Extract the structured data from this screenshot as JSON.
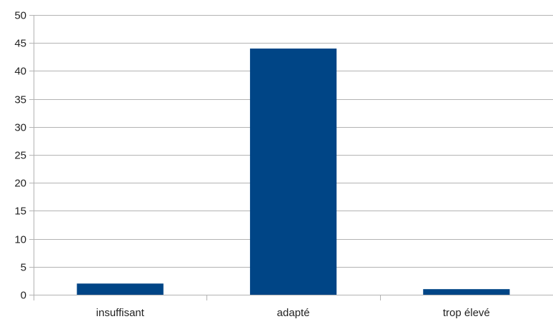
{
  "chart_data": {
    "type": "bar",
    "categories": [
      "insuffisant",
      "adapté",
      "trop élevé"
    ],
    "values": [
      2,
      44,
      1
    ],
    "ylim": [
      0,
      50
    ],
    "yticks": [
      0,
      5,
      10,
      15,
      20,
      25,
      30,
      35,
      40,
      45,
      50
    ],
    "grid": true,
    "legend": "none",
    "colors": {
      "bar": "#004586",
      "grid": "#b3b3b3",
      "axis": "#b3b3b3"
    }
  }
}
